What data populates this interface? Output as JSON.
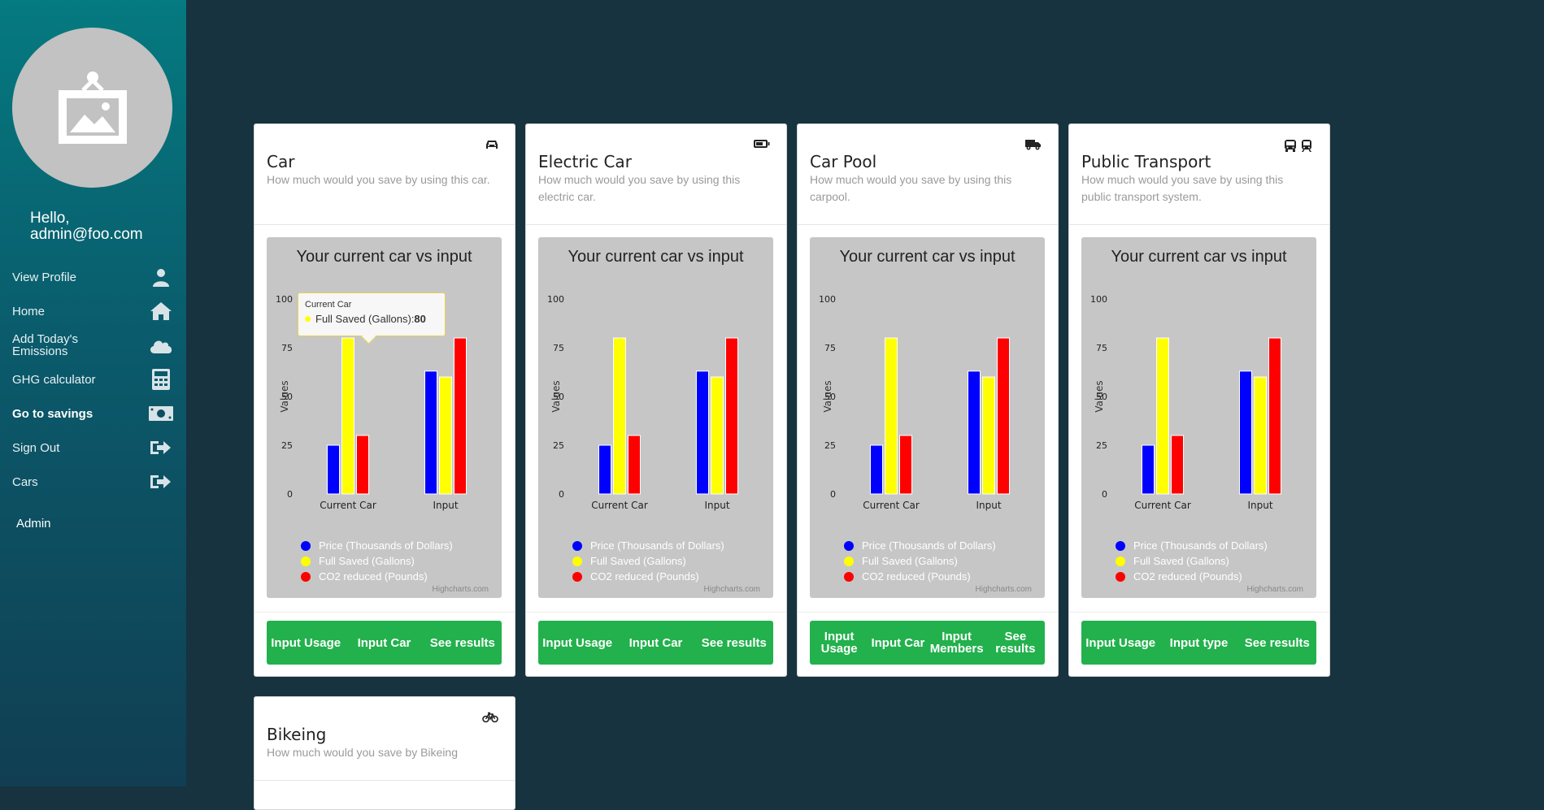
{
  "sidebar": {
    "greeting": "Hello,",
    "user": "admin@foo.com",
    "items": [
      {
        "label": "View Profile",
        "icon": "user-icon",
        "active": false
      },
      {
        "label": "Home",
        "icon": "home-icon",
        "active": false
      },
      {
        "label": "Add Today's Emissions",
        "icon": "cloud-icon",
        "active": false
      },
      {
        "label": "GHG calculator",
        "icon": "calculator-icon",
        "active": false
      },
      {
        "label": "Go to savings",
        "icon": "money-icon",
        "active": true
      },
      {
        "label": "Sign Out",
        "icon": "sign-out-icon",
        "active": false
      },
      {
        "label": "Cars",
        "icon": "sign-out-icon",
        "active": false
      }
    ],
    "admin_label": "Admin"
  },
  "chart_common": {
    "title": "Your current car vs input",
    "ylabel": "Values",
    "credits": "Highcharts.com",
    "colors": [
      "#0000ff",
      "#ffff00",
      "#ff0000"
    ]
  },
  "cards": [
    {
      "title": "Car",
      "subtitle": "How much would you save by using this car.",
      "icon": "car-icon",
      "buttons": [
        "Input Usage",
        "Input Car",
        "See results"
      ],
      "tooltip": {
        "header": "Current Car",
        "series": "Full Saved (Gallons): ",
        "value": "80"
      }
    },
    {
      "title": "Electric Car",
      "subtitle": "How much would you save by using this electric car.",
      "icon": "battery-icon",
      "buttons": [
        "Input Usage",
        "Input Car",
        "See results"
      ]
    },
    {
      "title": "Car Pool",
      "subtitle": "How much would you save by using this carpool.",
      "icon": "truck-icon",
      "buttons": [
        "Input Usage",
        "Input Car",
        "Input Members",
        "See results"
      ]
    },
    {
      "title": "Public Transport",
      "subtitle": "How much would you save by using this public transport system.",
      "icon": "bus-icon",
      "buttons": [
        "Input Usage",
        "Input type",
        "See results"
      ]
    },
    {
      "title": "Bikeing",
      "subtitle": "How much would you save by Bikeing",
      "icon": "bicycle-icon"
    }
  ],
  "chart_data": {
    "type": "bar",
    "title": "Your current car vs input",
    "categories": [
      "Current Car",
      "Input"
    ],
    "ylabel": "Values",
    "ylim": [
      0,
      100
    ],
    "yticks": [
      0,
      25,
      50,
      75,
      100
    ],
    "series": [
      {
        "name": "Price (Thousands of Dollars)",
        "color": "#0000ff",
        "values": [
          25,
          63
        ]
      },
      {
        "name": "Full Saved (Gallons)",
        "color": "#ffff00",
        "values": [
          80,
          60
        ]
      },
      {
        "name": "CO2 reduced (Pounds)",
        "color": "#ff0000",
        "values": [
          30,
          80
        ]
      }
    ],
    "legend_position": "bottom-left"
  }
}
